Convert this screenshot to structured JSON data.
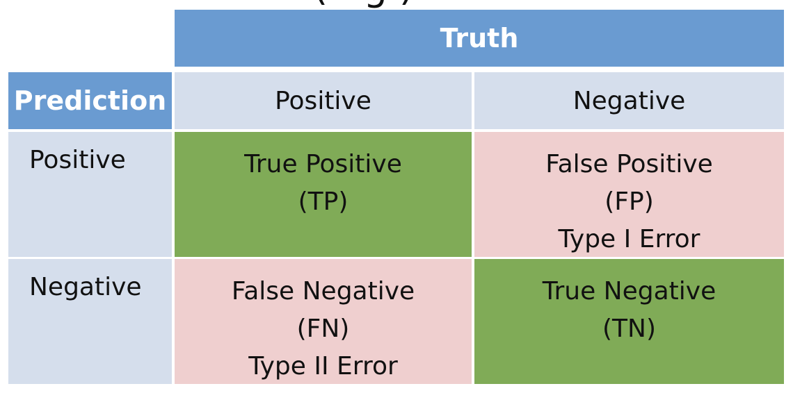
{
  "title_fragment": "(  ·  g  )  ",
  "matrix": {
    "column_header": "Truth",
    "corner_label": "Prediction",
    "columns": [
      "Positive",
      "Negative"
    ],
    "rows": [
      {
        "label": "Positive",
        "cells": [
          {
            "line1": "True Positive",
            "line2": "(TP)",
            "line3": ""
          },
          {
            "line1": "False Positive",
            "line2": "(FP)",
            "line3": "Type I Error"
          }
        ]
      },
      {
        "label": "Negative",
        "cells": [
          {
            "line1": "False Negative",
            "line2": "(FN)",
            "line3": "Type II Error"
          },
          {
            "line1": "True Negative",
            "line2": "(TN)",
            "line3": ""
          }
        ]
      }
    ]
  },
  "colors": {
    "header_blue": "#6a9bd1",
    "light_blue": "#d5deec",
    "correct_green": "#80ab57",
    "error_pink": "#efcfcf"
  }
}
